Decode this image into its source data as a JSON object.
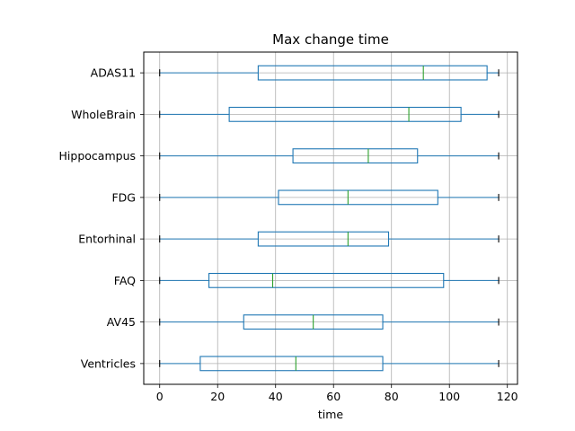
{
  "chart_data": {
    "type": "boxplot",
    "orientation": "horizontal",
    "title": "Max change time",
    "xlabel": "time",
    "ylabel": "",
    "xlim": [
      -5.5,
      123.5
    ],
    "xticks": [
      0,
      20,
      40,
      60,
      80,
      100,
      120
    ],
    "grid": true,
    "colors": {
      "box": "#1f77b4",
      "median": "#2ca02c",
      "grid": "#b0b0b0"
    },
    "categories": [
      "Ventricles",
      "AV45",
      "FAQ",
      "Entorhinal",
      "FDG",
      "Hippocampus",
      "WholeBrain",
      "ADAS11"
    ],
    "boxes": [
      {
        "name": "Ventricles",
        "whisker_low": 0,
        "q1": 14,
        "median": 47,
        "q3": 77,
        "whisker_high": 117
      },
      {
        "name": "AV45",
        "whisker_low": 0,
        "q1": 29,
        "median": 53,
        "q3": 77,
        "whisker_high": 117
      },
      {
        "name": "FAQ",
        "whisker_low": 0,
        "q1": 17,
        "median": 39,
        "q3": 98,
        "whisker_high": 117
      },
      {
        "name": "Entorhinal",
        "whisker_low": 0,
        "q1": 34,
        "median": 65,
        "q3": 79,
        "whisker_high": 117
      },
      {
        "name": "FDG",
        "whisker_low": 0,
        "q1": 41,
        "median": 65,
        "q3": 96,
        "whisker_high": 117
      },
      {
        "name": "Hippocampus",
        "whisker_low": 0,
        "q1": 46,
        "median": 72,
        "q3": 89,
        "whisker_high": 117
      },
      {
        "name": "WholeBrain",
        "whisker_low": 0,
        "q1": 24,
        "median": 86,
        "q3": 104,
        "whisker_high": 117
      },
      {
        "name": "ADAS11",
        "whisker_low": 0,
        "q1": 34,
        "median": 91,
        "q3": 113,
        "whisker_high": 117
      }
    ]
  }
}
